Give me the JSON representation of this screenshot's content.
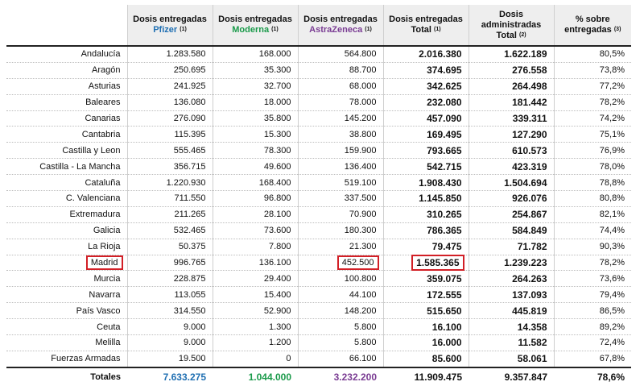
{
  "headers": [
    {
      "line1": "",
      "line2": ""
    },
    {
      "line1": "Dosis entregadas",
      "line2": "Pfizer",
      "sup": "(1)"
    },
    {
      "line1": "Dosis entregadas",
      "line2": "Moderna",
      "sup": "(1)"
    },
    {
      "line1": "Dosis entregadas",
      "line2": "AstraZeneca",
      "sup": "(1)"
    },
    {
      "line1": "Dosis entregadas",
      "line2": "Total",
      "sup": "(1)"
    },
    {
      "line1": "Dosis administradas",
      "line2": "Total",
      "sup": "(2)"
    },
    {
      "line1": "% sobre",
      "line2": "entregadas",
      "sup": "(3)"
    }
  ],
  "colors": {
    "pfizer": "#1f6fb2",
    "moderna": "#1a9a4a",
    "astrazeneca": "#7a3c93",
    "highlight": "#d21f26"
  },
  "rows": [
    [
      "Andalucía",
      "1.283.580",
      "168.000",
      "564.800",
      "2.016.380",
      "1.622.189",
      "80,5%"
    ],
    [
      "Aragón",
      "250.695",
      "35.300",
      "88.700",
      "374.695",
      "276.558",
      "73,8%"
    ],
    [
      "Asturias",
      "241.925",
      "32.700",
      "68.000",
      "342.625",
      "264.498",
      "77,2%"
    ],
    [
      "Baleares",
      "136.080",
      "18.000",
      "78.000",
      "232.080",
      "181.442",
      "78,2%"
    ],
    [
      "Canarias",
      "276.090",
      "35.800",
      "145.200",
      "457.090",
      "339.311",
      "74,2%"
    ],
    [
      "Cantabria",
      "115.395",
      "15.300",
      "38.800",
      "169.495",
      "127.290",
      "75,1%"
    ],
    [
      "Castilla y Leon",
      "555.465",
      "78.300",
      "159.900",
      "793.665",
      "610.573",
      "76,9%"
    ],
    [
      "Castilla - La Mancha",
      "356.715",
      "49.600",
      "136.400",
      "542.715",
      "423.319",
      "78,0%"
    ],
    [
      "Cataluña",
      "1.220.930",
      "168.400",
      "519.100",
      "1.908.430",
      "1.504.694",
      "78,8%"
    ],
    [
      "C. Valenciana",
      "711.550",
      "96.800",
      "337.500",
      "1.145.850",
      "926.076",
      "80,8%"
    ],
    [
      "Extremadura",
      "211.265",
      "28.100",
      "70.900",
      "310.265",
      "254.867",
      "82,1%"
    ],
    [
      "Galicia",
      "532.465",
      "73.600",
      "180.300",
      "786.365",
      "584.849",
      "74,4%"
    ],
    [
      "La Rioja",
      "50.375",
      "7.800",
      "21.300",
      "79.475",
      "71.782",
      "90,3%"
    ],
    [
      "Madrid",
      "996.765",
      "136.100",
      "452.500",
      "1.585.365",
      "1.239.223",
      "78,2%"
    ],
    [
      "Murcia",
      "228.875",
      "29.400",
      "100.800",
      "359.075",
      "264.263",
      "73,6%"
    ],
    [
      "Navarra",
      "113.055",
      "15.400",
      "44.100",
      "172.555",
      "137.093",
      "79,4%"
    ],
    [
      "País Vasco",
      "314.550",
      "52.900",
      "148.200",
      "515.650",
      "445.819",
      "86,5%"
    ],
    [
      "Ceuta",
      "9.000",
      "1.300",
      "5.800",
      "16.100",
      "14.358",
      "89,2%"
    ],
    [
      "Melilla",
      "9.000",
      "1.200",
      "5.800",
      "16.000",
      "11.582",
      "72,4%"
    ],
    [
      "Fuerzas Armadas",
      "19.500",
      "0",
      "66.100",
      "85.600",
      "58.061",
      "67,8%"
    ]
  ],
  "highlighted_row": "Madrid",
  "totals": [
    "Totales",
    "7.633.275",
    "1.044.000",
    "3.232.200",
    "11.909.475",
    "9.357.847",
    "78,6%"
  ]
}
